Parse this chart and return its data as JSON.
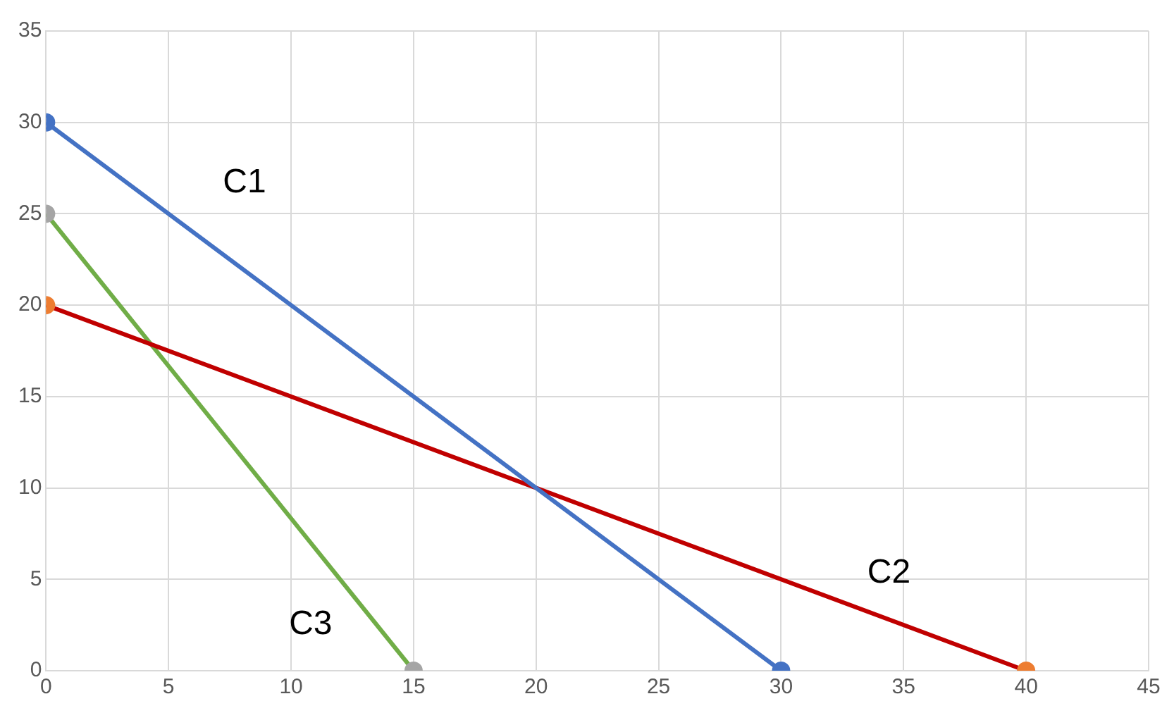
{
  "chart_data": {
    "type": "line",
    "xlim": [
      0,
      45
    ],
    "xticks": [
      0,
      5,
      10,
      15,
      20,
      25,
      30,
      35,
      40,
      45
    ],
    "ylim": [
      0,
      35
    ],
    "yticks": [
      0,
      5,
      10,
      15,
      20,
      25,
      30,
      35
    ],
    "grid": true,
    "legend": false,
    "marker": "circle",
    "series": [
      {
        "name": "C1",
        "color": "#4472c4",
        "x": [
          0,
          30
        ],
        "values": [
          30,
          0
        ],
        "colors": [
          "#4472c4",
          "#4472c4"
        ]
      },
      {
        "name": "C2",
        "color": "#c00000",
        "x": [
          0,
          40
        ],
        "values": [
          20,
          0
        ],
        "colors": [
          "#ed7d31",
          "#ed7d31"
        ]
      },
      {
        "name": "C3",
        "color": "#70ad47",
        "x": [
          0,
          15
        ],
        "values": [
          25,
          0
        ],
        "colors": [
          "#a5a5a5",
          "#a5a5a5"
        ]
      }
    ]
  }
}
